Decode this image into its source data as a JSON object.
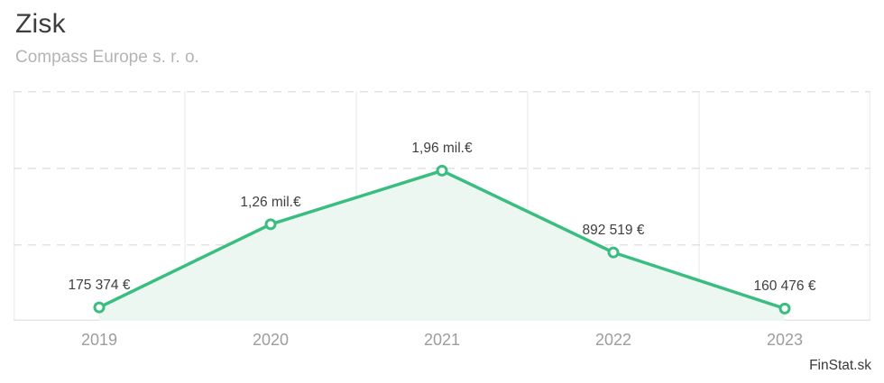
{
  "header": {
    "title": "Zisk",
    "subtitle": "Compass Europe s. r. o."
  },
  "watermark": "FinStat.sk",
  "chart_data": {
    "type": "area",
    "title": "Zisk",
    "subtitle": "Compass Europe s. r. o.",
    "categories": [
      "2019",
      "2020",
      "2021",
      "2022",
      "2023"
    ],
    "values": [
      175374,
      1260000,
      1960000,
      892519,
      160476
    ],
    "point_labels": [
      "175 374 €",
      "1,26 mil.€",
      "1,96 mil.€",
      "892 519 €",
      "160 476 €"
    ],
    "unit": "€",
    "xlabel": "",
    "ylabel": "",
    "ylim": [
      0,
      3000000
    ],
    "gridline_step": 1000000,
    "grid": "horizontal-dashed",
    "legend": "none",
    "colors": {
      "line": "#3abd80",
      "marker_fill": "#ffffff",
      "area_fill": "#ecf7f1",
      "grid_dashed": "#e2e2e2",
      "grid_vertical": "#edf0f0",
      "axis": "#e3e6e7"
    }
  }
}
